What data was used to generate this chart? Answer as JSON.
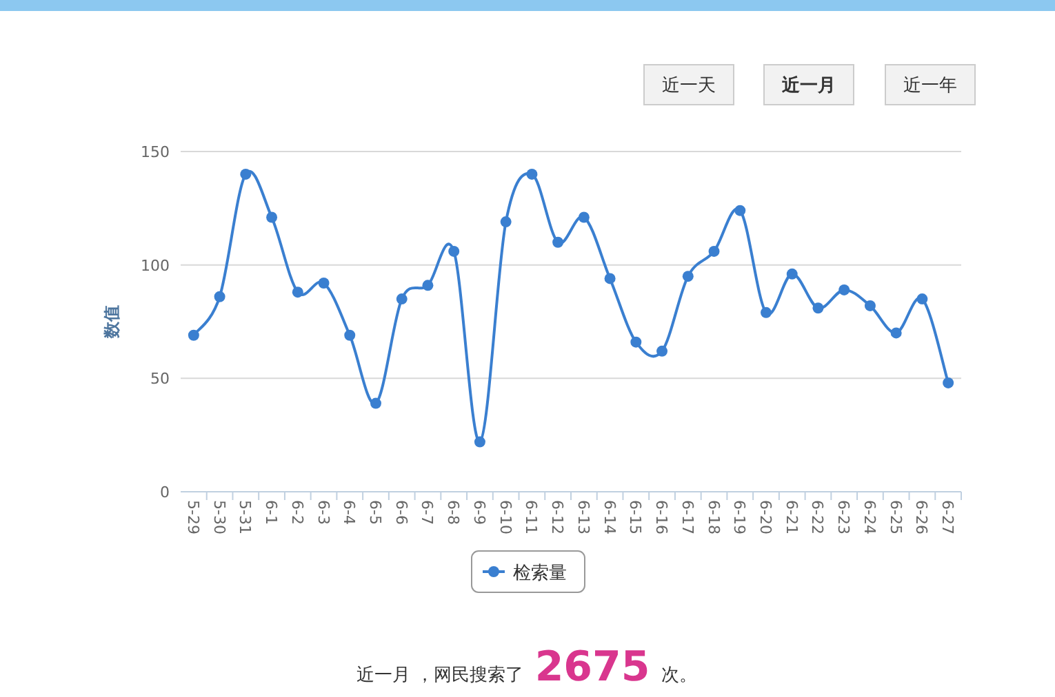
{
  "chart_data": {
    "type": "line",
    "ylabel": "数值",
    "categories": [
      "5-29",
      "5-30",
      "5-31",
      "6-1",
      "6-2",
      "6-3",
      "6-4",
      "6-5",
      "6-6",
      "6-7",
      "6-8",
      "6-9",
      "6-10",
      "6-11",
      "6-12",
      "6-13",
      "6-14",
      "6-15",
      "6-16",
      "6-17",
      "6-18",
      "6-19",
      "6-20",
      "6-21",
      "6-22",
      "6-23",
      "6-24",
      "6-25",
      "6-26",
      "6-27"
    ],
    "series": [
      {
        "name": "检索量",
        "color": "#3a7fd0",
        "values": [
          69,
          86,
          140,
          121,
          88,
          92,
          69,
          39,
          85,
          91,
          106,
          22,
          119,
          140,
          110,
          121,
          94,
          66,
          62,
          95,
          106,
          124,
          79,
          96,
          81,
          89,
          82,
          70,
          85,
          48
        ]
      }
    ],
    "ylim": [
      0,
      150
    ],
    "yticks": [
      0,
      50,
      100,
      150
    ],
    "grid": "y",
    "legend": "bottom",
    "marker": "circle",
    "line_style": "solid",
    "annotations": [
      "近一天",
      "近一月",
      "近一年",
      "近一月 ，网民搜索了 **2675** 次。"
    ]
  }
}
